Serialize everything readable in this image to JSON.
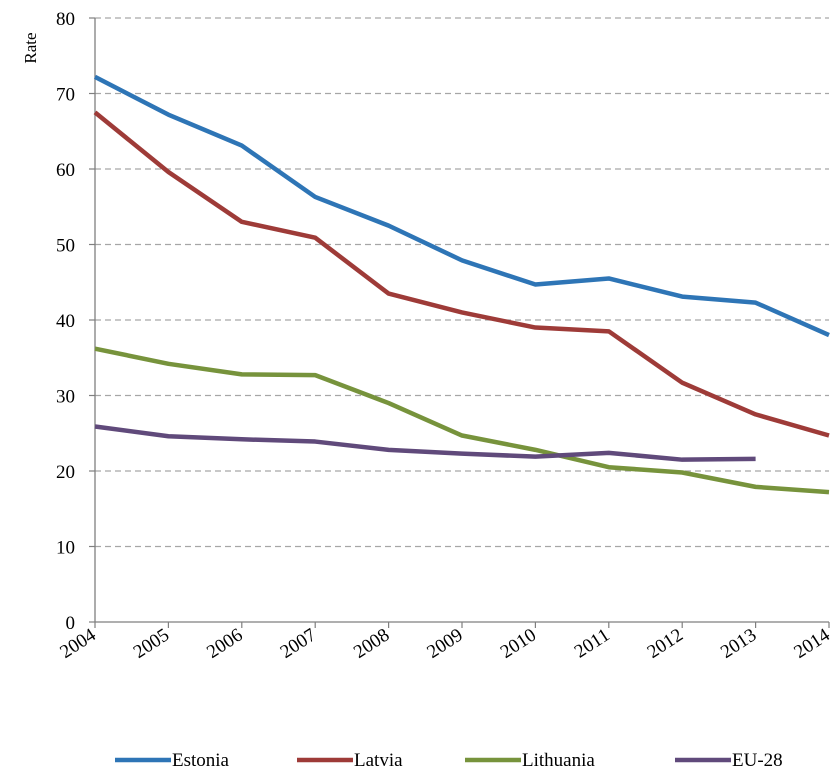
{
  "chart_data": {
    "type": "line",
    "title": "",
    "xlabel": "",
    "ylabel": "Rate",
    "ylim": [
      0,
      80
    ],
    "yticks": [
      "0",
      "10",
      "20",
      "30",
      "40",
      "50",
      "60",
      "70",
      "80"
    ],
    "grid": true,
    "legend_position": "bottom",
    "categories": [
      "2004",
      "2005",
      "2006",
      "2007",
      "2008",
      "2009",
      "2010",
      "2011",
      "2012",
      "2013",
      "2014"
    ],
    "series": [
      {
        "name": "Estonia",
        "color": "#2E75B6",
        "values": [
          72.2,
          67.2,
          63.1,
          56.3,
          52.5,
          47.9,
          44.7,
          45.5,
          43.1,
          42.3,
          38.0
        ]
      },
      {
        "name": "Latvia",
        "color": "#9E3B38",
        "values": [
          67.5,
          59.6,
          53.0,
          50.9,
          43.5,
          41.0,
          39.0,
          38.5,
          31.7,
          27.5,
          24.7
        ]
      },
      {
        "name": "Lithuania",
        "color": "#77933C",
        "values": [
          36.2,
          34.2,
          32.8,
          32.7,
          29.0,
          24.7,
          22.8,
          20.5,
          19.8,
          17.9,
          17.2
        ]
      },
      {
        "name": "EU-28",
        "color": "#604A7B",
        "values": [
          25.9,
          24.6,
          24.2,
          23.9,
          22.8,
          22.3,
          21.9,
          22.4,
          21.5,
          21.6,
          null
        ]
      }
    ]
  }
}
